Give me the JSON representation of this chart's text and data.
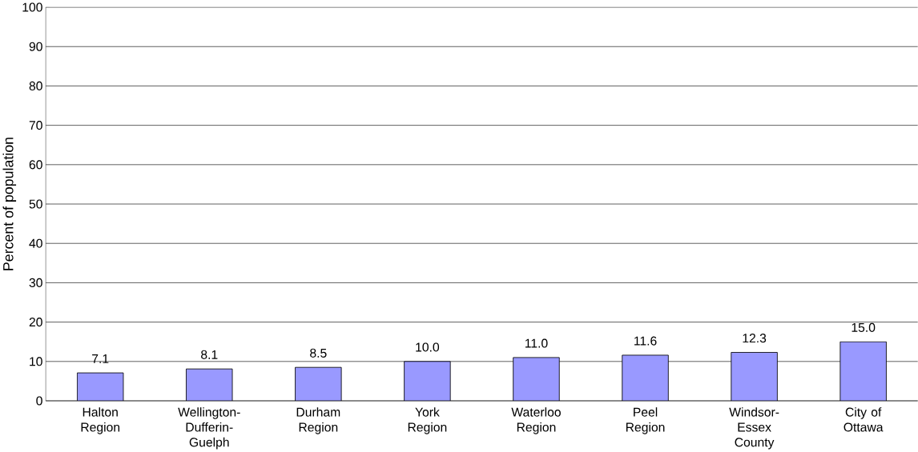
{
  "chart_data": {
    "type": "bar",
    "ylabel": "Percent of population",
    "categories": [
      "Halton Region",
      "Wellington-Dufferin-Guelph",
      "Durham Region",
      "York Region",
      "Waterloo Region",
      "Peel Region",
      "Windsor-Essex County",
      "City of Ottawa"
    ],
    "values": [
      7.1,
      8.1,
      8.5,
      10.0,
      11.0,
      11.6,
      12.3,
      15.0
    ],
    "value_labels": [
      "7.1",
      "8.1",
      "8.5",
      "10.0",
      "11.0",
      "11.6",
      "12.3",
      "15.0"
    ],
    "color": "#9999ff",
    "ylim": [
      0,
      100
    ],
    "yticks": [
      0,
      10,
      20,
      30,
      40,
      50,
      60,
      70,
      80,
      90,
      100
    ],
    "grid": "y"
  }
}
